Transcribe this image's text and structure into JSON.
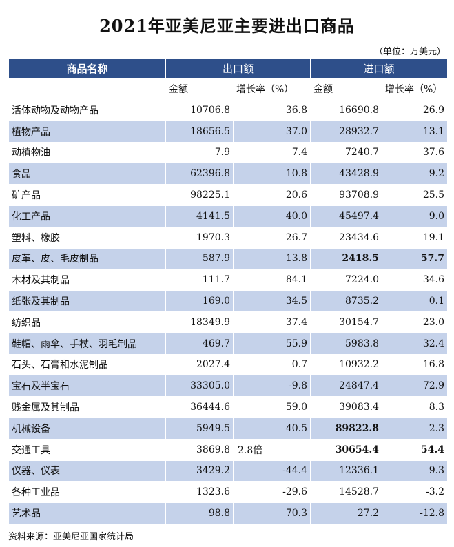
{
  "title": "2021年亚美尼亚主要进出口商品",
  "unit": "（单位：万美元）",
  "header": {
    "name": "商品名称",
    "export": "出口额",
    "import": "进口额",
    "amount": "金额",
    "growth": "增长率（%）"
  },
  "rows": [
    {
      "name": "活体动物及动物产品",
      "ex_amt": "10706.8",
      "ex_growth": "36.8",
      "im_amt": "16690.8",
      "im_growth": "26.9"
    },
    {
      "name": "植物产品",
      "ex_amt": "18656.5",
      "ex_growth": "37.0",
      "im_amt": "28932.7",
      "im_growth": "13.1"
    },
    {
      "name": "动植物油",
      "ex_amt": "7.9",
      "ex_growth": "7.4",
      "im_amt": "7240.7",
      "im_growth": "37.6"
    },
    {
      "name": "食品",
      "ex_amt": "62396.8",
      "ex_growth": "10.8",
      "im_amt": "43428.9",
      "im_growth": "9.2"
    },
    {
      "name": "矿产品",
      "ex_amt": "98225.1",
      "ex_growth": "20.6",
      "im_amt": "93708.9",
      "im_growth": "25.5"
    },
    {
      "name": "化工产品",
      "ex_amt": "4141.5",
      "ex_growth": "40.0",
      "im_amt": "45497.4",
      "im_growth": "9.0"
    },
    {
      "name": "塑料、橡胶",
      "ex_amt": "1970.3",
      "ex_growth": "26.7",
      "im_amt": "23434.6",
      "im_growth": "19.1"
    },
    {
      "name": "皮革、皮、毛皮制品",
      "ex_amt": "587.9",
      "ex_growth": "13.8",
      "im_amt": "2418.5",
      "im_growth": "57.7"
    },
    {
      "name": "木材及其制品",
      "ex_amt": "111.7",
      "ex_growth": "84.1",
      "im_amt": "7224.0",
      "im_growth": "34.6"
    },
    {
      "name": "纸张及其制品",
      "ex_amt": "169.0",
      "ex_growth": "34.5",
      "im_amt": "8735.2",
      "im_growth": "0.1"
    },
    {
      "name": "纺织品",
      "ex_amt": "18349.9",
      "ex_growth": "37.4",
      "im_amt": "30154.7",
      "im_growth": "23.0"
    },
    {
      "name": "鞋帽、雨伞、手杖、羽毛制品",
      "ex_amt": "469.7",
      "ex_growth": "55.9",
      "im_amt": "5983.8",
      "im_growth": "32.4"
    },
    {
      "name": "石头、石膏和水泥制品",
      "ex_amt": "2027.4",
      "ex_growth": "0.7",
      "im_amt": "10932.2",
      "im_growth": "16.8"
    },
    {
      "name": "宝石及半宝石",
      "ex_amt": "33305.0",
      "ex_growth": "-9.8",
      "im_amt": "24847.4",
      "im_growth": "72.9"
    },
    {
      "name": "贱金属及其制品",
      "ex_amt": "36444.6",
      "ex_growth": "59.0",
      "im_amt": "39083.4",
      "im_growth": "8.3"
    },
    {
      "name": "机械设备",
      "ex_amt": "5949.5",
      "ex_growth": "40.5",
      "im_amt": "89822.8",
      "im_growth": "2.3"
    },
    {
      "name": "交通工具",
      "ex_amt": "3869.8",
      "ex_growth": "2.8倍",
      "im_amt": "30654.4",
      "im_growth": "54.4"
    },
    {
      "name": "仪器、仪表",
      "ex_amt": "3429.2",
      "ex_growth": "-44.4",
      "im_amt": "12336.1",
      "im_growth": "9.3"
    },
    {
      "name": "各种工业品",
      "ex_amt": "1323.6",
      "ex_growth": "-29.6",
      "im_amt": "14528.7",
      "im_growth": "-3.2"
    },
    {
      "name": "艺术品",
      "ex_amt": "98.8",
      "ex_growth": "70.3",
      "im_amt": "27.2",
      "im_growth": "-12.8"
    }
  ],
  "source": "资料来源：亚美尼亚国家统计局",
  "colors": {
    "header_bg": "#2e4f8a",
    "stripe_bg": "#c5d2ea"
  }
}
